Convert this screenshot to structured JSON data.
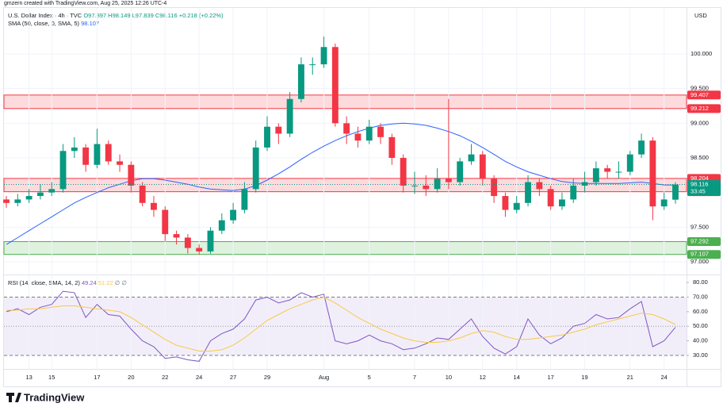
{
  "attribution": "gmzern created with TradingView.com, Aug 25, 2025 12:26 UTC-4",
  "currency": "USD",
  "logo": "TradingView",
  "chart_data": [
    {
      "type": "candlestick",
      "title": "U.S. Dollar Index · 4h · TVC",
      "subtitle": "O97.897 H98.149 L97.839 C98.116 +0.218 (+0.22%)",
      "categories": [
        null,
        null,
        "13",
        null,
        "15",
        null,
        null,
        null,
        "17",
        null,
        null,
        "20",
        null,
        null,
        "22",
        null,
        null,
        "24",
        null,
        null,
        "27",
        null,
        null,
        "29",
        null,
        null,
        null,
        null,
        "Aug",
        null,
        null,
        null,
        "5",
        null,
        null,
        null,
        "7",
        null,
        null,
        "10",
        null,
        null,
        "12",
        null,
        null,
        "14",
        null,
        null,
        "17",
        null,
        null,
        "19",
        null,
        null,
        null,
        "21",
        null,
        null,
        "24",
        null
      ],
      "open": [
        97.9,
        97.85,
        97.9,
        97.95,
        98.0,
        98.05,
        98.6,
        98.65,
        98.4,
        98.7,
        98.45,
        98.4,
        98.1,
        97.85,
        97.75,
        97.4,
        97.35,
        97.2,
        97.15,
        97.45,
        97.6,
        97.75,
        98.05,
        98.65,
        98.95,
        98.85,
        99.35,
        99.85,
        99.85,
        100.1,
        99.0,
        98.85,
        98.75,
        98.95,
        98.8,
        98.5,
        98.1,
        98.1,
        98.05,
        98.2,
        98.15,
        98.45,
        98.55,
        98.2,
        97.95,
        97.75,
        97.85,
        98.15,
        98.05,
        97.8,
        97.9,
        98.1,
        98.15,
        98.35,
        98.3,
        98.3,
        98.55,
        98.75,
        97.8,
        97.897
      ],
      "high": [
        97.95,
        97.98,
        98.05,
        98.12,
        98.15,
        98.7,
        98.8,
        98.7,
        98.92,
        98.75,
        98.55,
        98.45,
        98.15,
        97.95,
        97.8,
        97.45,
        97.4,
        97.25,
        97.5,
        97.7,
        97.85,
        98.15,
        98.75,
        99.1,
        99.0,
        99.45,
        99.95,
        99.95,
        100.25,
        100.15,
        99.1,
        98.95,
        99.05,
        99.0,
        98.85,
        98.55,
        98.3,
        98.25,
        98.35,
        99.35,
        98.5,
        98.7,
        98.6,
        98.25,
        98.0,
        97.95,
        98.25,
        98.2,
        98.1,
        98.0,
        98.2,
        98.3,
        98.45,
        98.4,
        98.45,
        98.6,
        98.85,
        98.8,
        98.0,
        98.149
      ],
      "low": [
        97.78,
        97.8,
        97.85,
        97.9,
        97.95,
        98.0,
        98.5,
        98.3,
        98.35,
        98.4,
        98.3,
        98.0,
        97.8,
        97.65,
        97.3,
        97.25,
        97.12,
        97.1,
        97.12,
        97.4,
        97.55,
        97.7,
        98.0,
        98.6,
        98.7,
        98.8,
        99.3,
        99.7,
        99.8,
        98.95,
        98.7,
        98.65,
        98.7,
        98.7,
        98.4,
        98.0,
        97.98,
        97.95,
        98.0,
        98.05,
        98.1,
        98.4,
        98.1,
        97.85,
        97.65,
        97.7,
        97.8,
        97.95,
        97.75,
        97.75,
        97.85,
        98.0,
        98.1,
        98.2,
        98.2,
        98.25,
        98.5,
        97.6,
        97.75,
        97.839
      ],
      "close": [
        97.85,
        97.9,
        97.95,
        98.0,
        98.05,
        98.6,
        98.65,
        98.4,
        98.7,
        98.45,
        98.4,
        98.1,
        97.85,
        97.75,
        97.4,
        97.35,
        97.2,
        97.15,
        97.45,
        97.6,
        97.75,
        98.05,
        98.65,
        98.95,
        98.85,
        99.35,
        99.85,
        99.85,
        100.1,
        99.0,
        98.85,
        98.75,
        98.95,
        98.8,
        98.5,
        98.1,
        98.1,
        98.05,
        98.2,
        98.15,
        98.45,
        98.55,
        98.2,
        97.95,
        97.75,
        97.85,
        98.15,
        98.05,
        97.8,
        97.9,
        98.1,
        98.15,
        98.35,
        98.3,
        98.3,
        98.55,
        98.75,
        97.8,
        97.9,
        98.116
      ],
      "up_color": "#089981",
      "down_color": "#f23645",
      "sma": {
        "title": "SMA (50, close, 0, SMA, 5)",
        "color": "#2962ff",
        "values": [
          97.25,
          97.35,
          97.45,
          97.55,
          97.65,
          97.75,
          97.85,
          97.93,
          98.0,
          98.07,
          98.12,
          98.17,
          98.2,
          98.2,
          98.18,
          98.15,
          98.12,
          98.08,
          98.05,
          98.04,
          98.03,
          98.05,
          98.1,
          98.18,
          98.27,
          98.37,
          98.48,
          98.58,
          98.67,
          98.75,
          98.82,
          98.88,
          98.93,
          98.97,
          98.99,
          99.0,
          98.99,
          98.97,
          98.93,
          98.88,
          98.82,
          98.74,
          98.65,
          98.55,
          98.45,
          98.37,
          98.3,
          98.25,
          98.2,
          98.16,
          98.14,
          98.13,
          98.13,
          98.13,
          98.13,
          98.14,
          98.15,
          98.13,
          98.11,
          98.107
        ]
      },
      "zones": [
        {
          "from": 99.212,
          "to": 99.407,
          "color": "#f23645"
        },
        {
          "from": 98.012,
          "to": 98.204,
          "color": "#f23645"
        },
        {
          "from": 97.107,
          "to": 97.292,
          "color": "#4caf50"
        }
      ],
      "last_price": 98.116,
      "countdown": "33:45",
      "ylim": [
        96.863,
        100.664
      ],
      "yticks": [
        {
          "value": 97,
          "label": "97.000"
        },
        {
          "value": 97.5,
          "label": "97.500"
        },
        {
          "value": 98.5,
          "label": "98.500"
        },
        {
          "value": 99,
          "label": "99.000"
        },
        {
          "value": 99.5,
          "label": "99.500"
        },
        {
          "value": 100,
          "label": "100.000"
        }
      ],
      "grid": true
    },
    {
      "type": "line",
      "title": "RSI (14, close, SMA, 14, 2)",
      "extra": "∅ ∅",
      "series": [
        {
          "color": "#7e57c2",
          "values": [
            60,
            62,
            58,
            63,
            65,
            74,
            73,
            56,
            65,
            58,
            57,
            48,
            40,
            36,
            28,
            29,
            27,
            26,
            40,
            45,
            48,
            55,
            68,
            70,
            66,
            68,
            73,
            70,
            72,
            40,
            38,
            40,
            44,
            40,
            38,
            34,
            35,
            38,
            42,
            41,
            48,
            55,
            43,
            35,
            31,
            36,
            55,
            44,
            38,
            42,
            50,
            52,
            58,
            55,
            56,
            62,
            67,
            36,
            40,
            49.24
          ]
        },
        {
          "color": "#f7c948",
          "values": [
            61,
            61,
            62,
            62,
            63,
            64,
            64,
            63,
            62,
            61,
            60,
            56,
            51,
            46,
            41,
            37,
            35,
            33,
            33,
            34,
            37,
            42,
            48,
            54,
            58,
            62,
            65,
            68,
            70,
            66,
            61,
            56,
            52,
            48,
            45,
            42,
            40,
            39,
            39,
            40,
            42,
            45,
            47,
            46,
            43,
            41,
            41,
            42,
            43,
            44,
            46,
            48,
            51,
            53,
            55,
            57,
            59,
            58,
            55,
            51.22
          ]
        }
      ],
      "band": [
        30,
        70
      ],
      "band_color": "#7e57c2",
      "midline": 50,
      "ylim": [
        22.4,
        83.3
      ],
      "yticks": [
        {
          "value": 30,
          "label": "30.00"
        },
        {
          "value": 40,
          "label": "40.00"
        },
        {
          "value": 50,
          "label": "50.00"
        },
        {
          "value": 60,
          "label": "60.00"
        },
        {
          "value": 70,
          "label": "70.00"
        },
        {
          "value": 80,
          "label": "80.00"
        }
      ]
    }
  ]
}
